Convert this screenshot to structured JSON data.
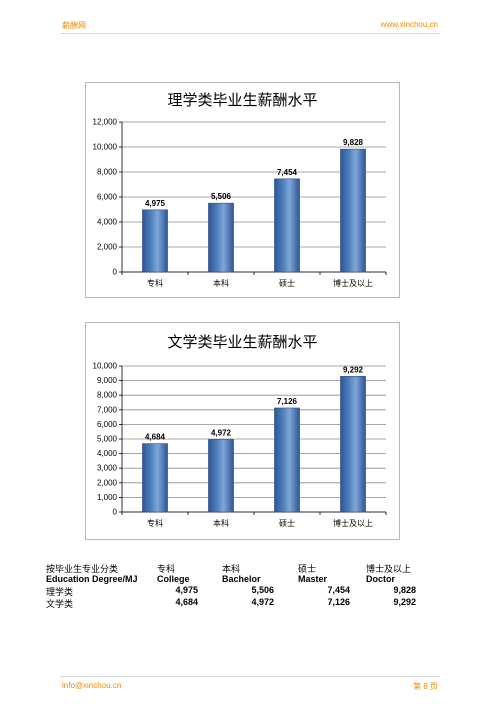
{
  "header": {
    "site_name": "薪酬网",
    "url": "www.xinchou.cn"
  },
  "footer": {
    "email": "info@xinchou.cn",
    "page": "第 8 页"
  },
  "colors": {
    "bar": "#4f81bd",
    "bar_dark": "#2f5597",
    "accent": "#f08a00"
  },
  "chart_data": [
    {
      "type": "bar",
      "title": "理学类毕业生薪酬水平",
      "categories": [
        "专科",
        "本科",
        "硕士",
        "博士及以上"
      ],
      "values": [
        4975,
        5506,
        7454,
        9828
      ],
      "value_labels": [
        "4,975",
        "5,506",
        "7,454",
        "9,828"
      ],
      "ylim": [
        0,
        12000
      ],
      "yticks": [
        0,
        2000,
        4000,
        6000,
        8000,
        10000,
        12000
      ],
      "ytick_labels": [
        "0",
        "2,000",
        "4,000",
        "6,000",
        "8,000",
        "10,000",
        "12,000"
      ],
      "grid": true,
      "legend": "none"
    },
    {
      "type": "bar",
      "title": "文学类毕业生薪酬水平",
      "categories": [
        "专科",
        "本科",
        "硕士",
        "博士及以上"
      ],
      "values": [
        4684,
        4972,
        7126,
        9292
      ],
      "value_labels": [
        "4,684",
        "4,972",
        "7,126",
        "9,292"
      ],
      "ylim": [
        0,
        10000
      ],
      "yticks": [
        0,
        1000,
        2000,
        3000,
        4000,
        5000,
        6000,
        7000,
        8000,
        9000,
        10000
      ],
      "ytick_labels": [
        "0",
        "1,000",
        "2,000",
        "3,000",
        "4,000",
        "5,000",
        "6,000",
        "7,000",
        "8,000",
        "9,000",
        "10,000"
      ],
      "grid": true,
      "legend": "none"
    }
  ],
  "table": {
    "header_cn": [
      "按毕业生专业分类",
      "专科",
      "本科",
      "硕士",
      "博士及以上"
    ],
    "header_en": [
      "Education Degree/MJ",
      "College",
      "Bachelor",
      "Master",
      "Doctor"
    ],
    "rows": [
      {
        "label": "理学类",
        "values": [
          "4,975",
          "5,506",
          "7,454",
          "9,828"
        ]
      },
      {
        "label": "文学类",
        "values": [
          "4,684",
          "4,972",
          "7,126",
          "9,292"
        ]
      }
    ]
  }
}
